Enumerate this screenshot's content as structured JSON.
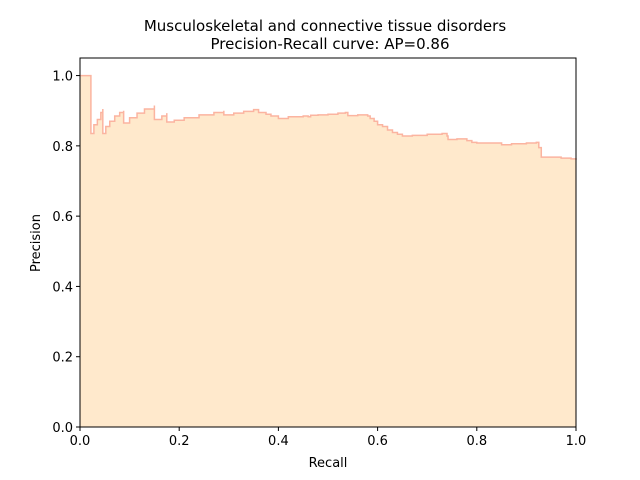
{
  "chart_data": {
    "type": "area",
    "title_line1": "Musculoskeletal and connective tissue disorders",
    "title_line2": "Precision-Recall curve: AP=0.86",
    "xlabel": "Recall",
    "ylabel": "Precision",
    "xlim": [
      0.0,
      1.0
    ],
    "ylim": [
      0.0,
      1.05
    ],
    "xticks": [
      "0.0",
      "0.2",
      "0.4",
      "0.6",
      "0.8",
      "1.0"
    ],
    "yticks": [
      "0.0",
      "0.2",
      "0.4",
      "0.6",
      "0.8",
      "1.0"
    ],
    "grid": false,
    "colors": {
      "fill": "#ffe9cc",
      "line": "#fbb4a0"
    },
    "series": [
      {
        "step": "post",
        "points": [
          [
            0.0,
            1.0
          ],
          [
            0.022,
            1.0
          ],
          [
            0.022,
            0.835
          ],
          [
            0.028,
            0.86
          ],
          [
            0.035,
            0.875
          ],
          [
            0.042,
            0.895
          ],
          [
            0.046,
            0.905
          ],
          [
            0.046,
            0.835
          ],
          [
            0.052,
            0.855
          ],
          [
            0.06,
            0.87
          ],
          [
            0.07,
            0.885
          ],
          [
            0.08,
            0.895
          ],
          [
            0.088,
            0.9
          ],
          [
            0.088,
            0.865
          ],
          [
            0.1,
            0.88
          ],
          [
            0.115,
            0.893
          ],
          [
            0.13,
            0.905
          ],
          [
            0.15,
            0.915
          ],
          [
            0.15,
            0.875
          ],
          [
            0.165,
            0.885
          ],
          [
            0.175,
            0.893
          ],
          [
            0.175,
            0.868
          ],
          [
            0.19,
            0.873
          ],
          [
            0.21,
            0.88
          ],
          [
            0.24,
            0.888
          ],
          [
            0.27,
            0.895
          ],
          [
            0.29,
            0.9
          ],
          [
            0.29,
            0.888
          ],
          [
            0.31,
            0.893
          ],
          [
            0.33,
            0.898
          ],
          [
            0.35,
            0.903
          ],
          [
            0.36,
            0.903
          ],
          [
            0.36,
            0.895
          ],
          [
            0.375,
            0.89
          ],
          [
            0.385,
            0.885
          ],
          [
            0.4,
            0.878
          ],
          [
            0.42,
            0.883
          ],
          [
            0.45,
            0.885
          ],
          [
            0.46,
            0.883
          ],
          [
            0.465,
            0.887
          ],
          [
            0.48,
            0.888
          ],
          [
            0.5,
            0.89
          ],
          [
            0.52,
            0.893
          ],
          [
            0.535,
            0.895
          ],
          [
            0.54,
            0.886
          ],
          [
            0.56,
            0.888
          ],
          [
            0.58,
            0.885
          ],
          [
            0.585,
            0.878
          ],
          [
            0.593,
            0.87
          ],
          [
            0.6,
            0.86
          ],
          [
            0.61,
            0.855
          ],
          [
            0.62,
            0.845
          ],
          [
            0.63,
            0.838
          ],
          [
            0.64,
            0.833
          ],
          [
            0.65,
            0.828
          ],
          [
            0.67,
            0.83
          ],
          [
            0.7,
            0.833
          ],
          [
            0.73,
            0.835
          ],
          [
            0.74,
            0.828
          ],
          [
            0.742,
            0.818
          ],
          [
            0.76,
            0.82
          ],
          [
            0.78,
            0.815
          ],
          [
            0.79,
            0.81
          ],
          [
            0.8,
            0.808
          ],
          [
            0.82,
            0.808
          ],
          [
            0.85,
            0.803
          ],
          [
            0.87,
            0.806
          ],
          [
            0.9,
            0.808
          ],
          [
            0.92,
            0.81
          ],
          [
            0.925,
            0.795
          ],
          [
            0.93,
            0.78
          ],
          [
            0.93,
            0.768
          ],
          [
            0.95,
            0.768
          ],
          [
            0.97,
            0.765
          ],
          [
            0.99,
            0.763
          ],
          [
            1.0,
            0.76
          ]
        ]
      }
    ]
  }
}
